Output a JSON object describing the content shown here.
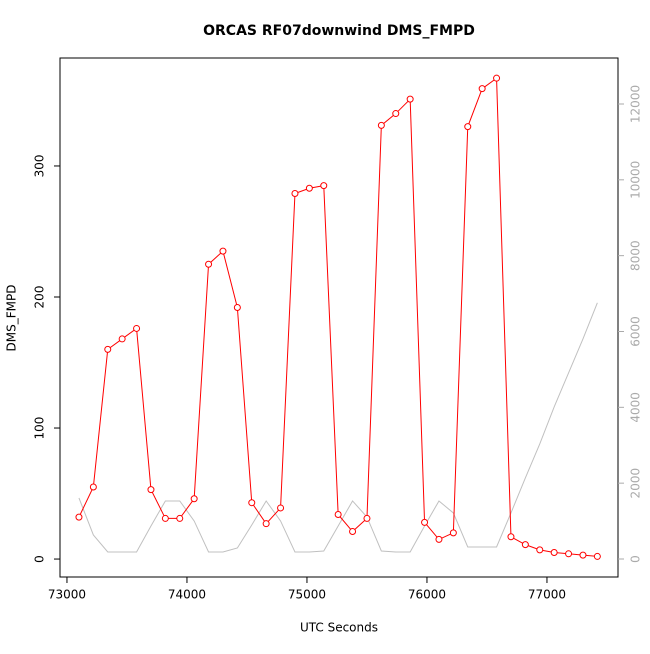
{
  "chart_data": {
    "type": "line",
    "title": "ORCAS RF07downwind DMS_FMPD",
    "xlabel": "UTC Seconds",
    "ylabel": "DMS_FMPD",
    "x": [
      73100,
      73220,
      73340,
      73460,
      73580,
      73700,
      73820,
      73940,
      74060,
      74180,
      74300,
      74420,
      74540,
      74660,
      74780,
      74900,
      75020,
      75140,
      75260,
      75380,
      75500,
      75620,
      75740,
      75860,
      75980,
      76100,
      76220,
      76340,
      76460,
      76580,
      76700,
      76820,
      76940,
      77060,
      77180,
      77300,
      77420
    ],
    "series": [
      {
        "color": "#ff0000",
        "markers": true,
        "values": [
          32,
          55,
          160,
          168,
          176,
          53,
          31,
          31,
          46,
          225,
          235,
          192,
          43,
          27,
          39,
          279,
          283,
          285,
          34,
          21,
          31,
          331,
          340,
          351,
          28,
          15,
          20,
          330,
          359,
          367,
          17,
          11,
          7,
          5,
          4,
          3,
          2
        ]
      },
      {
        "color": "#c0c0c0",
        "axis": "y2",
        "markers": false,
        "values": [
          1609,
          633,
          185,
          185,
          185,
          871,
          1530,
          1530,
          1003,
          185,
          185,
          290,
          897,
          1530,
          1003,
          185,
          185,
          211,
          871,
          1530,
          1108,
          211,
          185,
          185,
          871,
          1530,
          1214,
          317,
          317,
          317,
          1214,
          2137,
          3034,
          4011,
          4908,
          5805,
          6755
        ]
      }
    ],
    "xlim": [
      72942,
      77592
    ],
    "xticks": [
      73000,
      74000,
      75000,
      76000,
      77000
    ],
    "ylim": [
      -13.7,
      382.4
    ],
    "yticks": [
      0,
      100,
      200,
      300
    ],
    "y2lim": [
      -475,
      13213
    ],
    "y2ticks": [
      0,
      2000,
      4000,
      6000,
      8000,
      10000,
      12000
    ]
  }
}
